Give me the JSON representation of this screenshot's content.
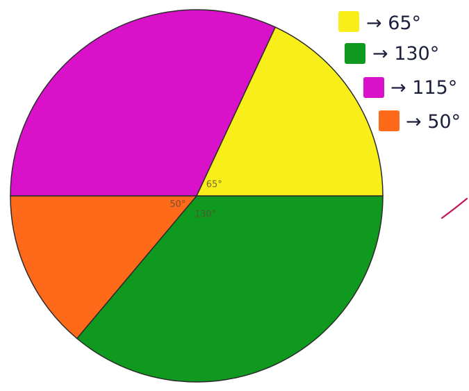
{
  "chart_data": {
    "type": "pie",
    "unit": "degrees",
    "slices": [
      {
        "value": 130,
        "color": "#0f9a1f",
        "label": "130°",
        "legend_label": "130°"
      },
      {
        "value": 50,
        "color": "#ff6a1a",
        "label": "50°",
        "legend_label": "50°"
      },
      {
        "value": 115,
        "color": "#d911c8",
        "label": "",
        "legend_label": "115°"
      },
      {
        "value": 65,
        "color": "#f7ee1a",
        "label": "65°",
        "legend_label": "65°"
      }
    ],
    "legend_order": [
      3,
      0,
      2,
      1
    ],
    "legend_position": "top-right",
    "legend_arrow": "→",
    "annotation_color": "#c2185b"
  }
}
